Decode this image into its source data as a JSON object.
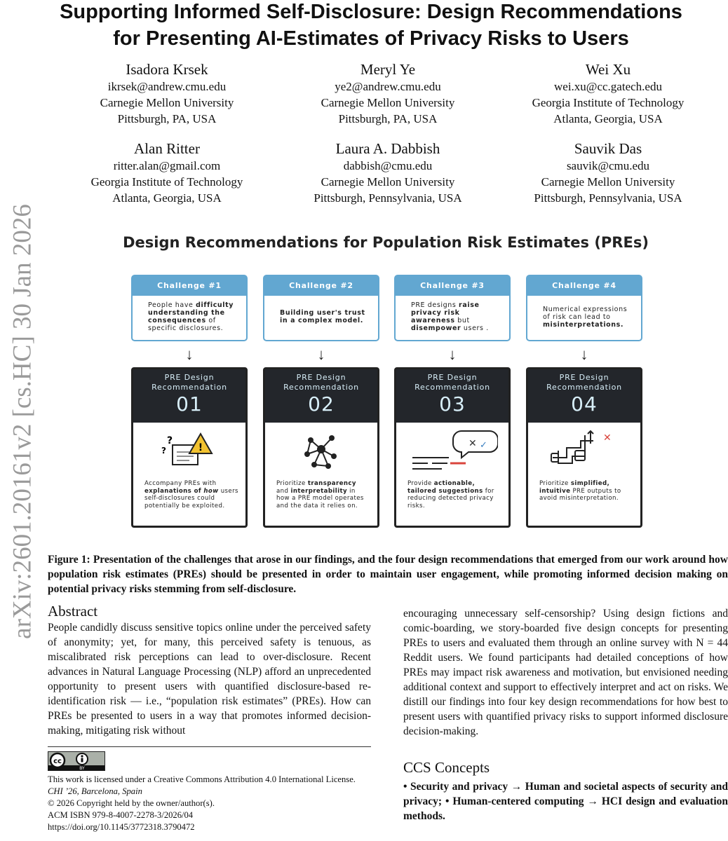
{
  "arxiv_stamp": "arXiv:2601.20161v2  [cs.HC]  30 Jan 2026",
  "title": [
    "Supporting Informed Self-Disclosure: Design Recommendations",
    "for Presenting AI-Estimates of Privacy Risks to Users"
  ],
  "authors": [
    {
      "name": "Isadora Krsek",
      "email": "ikrsek@andrew.cmu.edu",
      "org": "Carnegie Mellon University",
      "loc": "Pittsburgh, PA, USA"
    },
    {
      "name": "Meryl Ye",
      "email": "ye2@andrew.cmu.edu",
      "org": "Carnegie Mellon University",
      "loc": "Pittsburgh, PA, USA"
    },
    {
      "name": "Wei Xu",
      "email": "wei.xu@cc.gatech.edu",
      "org": "Georgia Institute of Technology",
      "loc": "Atlanta, Georgia, USA"
    },
    {
      "name": "Alan Ritter",
      "email": "ritter.alan@gmail.com",
      "org": "Georgia Institute of Technology",
      "loc": "Atlanta, Georgia, USA"
    },
    {
      "name": "Laura A. Dabbish",
      "email": "dabbish@cmu.edu",
      "org": "Carnegie Mellon University",
      "loc": "Pittsburgh, Pennsylvania, USA"
    },
    {
      "name": "Sauvik Das",
      "email": "sauvik@cmu.edu",
      "org": "Carnegie Mellon University",
      "loc": "Pittsburgh, Pennsylvania, USA"
    }
  ],
  "figure": {
    "title": "Design Recommendations for Population Risk Estimates (PREs)",
    "accent": "#62a7d1",
    "dark": "#23262b",
    "challenges": [
      {
        "label": "Challenge #1",
        "text": [
          [
            "People have ",
            0
          ],
          [
            "difficulty understanding the consequences",
            1
          ],
          [
            " of specific disclosures.",
            0
          ]
        ]
      },
      {
        "label": "Challenge #2",
        "text": [
          [
            "Building user's trust in a complex model.",
            1
          ]
        ]
      },
      {
        "label": "Challenge #3",
        "text": [
          [
            "PRE designs ",
            0
          ],
          [
            "raise privacy risk awareness",
            1
          ],
          [
            " but ",
            0
          ],
          [
            "disempower",
            1
          ],
          [
            " users .",
            0
          ]
        ]
      },
      {
        "label": "Challenge #4",
        "text": [
          [
            "Numerical expressions of risk can lead to ",
            0
          ],
          [
            "misinterpretations.",
            1
          ]
        ]
      }
    ],
    "arrow": "↓",
    "recommendations": [
      {
        "label": "PRE Design Recommendation",
        "number": "01",
        "icon": "warning-document-icon",
        "text": [
          [
            "Accompany PREs with ",
            0
          ],
          [
            "explanations of ",
            1
          ],
          [
            "how",
            1
          ],
          [
            " users self-disclosures could potentially be exploited.",
            0
          ]
        ]
      },
      {
        "label": "PRE Design Recommendation",
        "number": "02",
        "icon": "network-model-icon",
        "text": [
          [
            "Prioritize ",
            0
          ],
          [
            "transparency",
            1
          ],
          [
            " and ",
            0
          ],
          [
            "interpretability",
            1
          ],
          [
            " in how a PRE model operates and the data it relies on.",
            0
          ]
        ]
      },
      {
        "label": "PRE Design Recommendation",
        "number": "03",
        "icon": "suggestion-bubble-icon",
        "text": [
          [
            "Provide ",
            0
          ],
          [
            "actionable, tailored suggestions",
            1
          ],
          [
            " for reducing detected privacy risks.",
            0
          ]
        ]
      },
      {
        "label": "PRE Design Recommendation",
        "number": "04",
        "icon": "simplified-path-icon",
        "text": [
          [
            "Prioritize ",
            0
          ],
          [
            "simplified, intuitive",
            1
          ],
          [
            " PRE outputs to avoid misinterpretation.",
            0
          ]
        ]
      }
    ]
  },
  "caption": "Figure 1: Presentation of the challenges that arose in our findings, and the four design recommendations that emerged from our work around how population risk estimates (PREs) should be presented in order to maintain user engagement, while promoting informed decision making on potential privacy risks stemming from self-disclosure.",
  "abstract": {
    "heading": "Abstract",
    "left": "People candidly discuss sensitive topics online under the perceived safety of anonymity; yet, for many, this perceived safety is tenuous, as miscalibrated risk perceptions can lead to over-disclosure. Recent advances in Natural Language Processing (NLP) afford an unprecedented opportunity to present users with quantified disclosure-based re-identification risk — i.e., “population risk estimates” (PREs). How can PREs be presented to users in a way that promotes informed decision-making, mitigating risk without",
    "right": "encouraging unnecessary self-censorship? Using design fictions and comic-boarding, we story-boarded five design concepts for presenting PREs to users and evaluated them through an online survey with N = 44 Reddit users. We found participants had detailed conceptions of how PREs may impact risk awareness and motivation, but envisioned needing additional context and support to effectively interpret and act on risks. We distill our findings into four key design recommendations for how best to present users with quantified privacy risks to support informed disclosure decision-making."
  },
  "license": {
    "badge": "CC BY",
    "lines": [
      "This work is licensed under a Creative Commons Attribution 4.0 International License.",
      "CHI ’26, Barcelona, Spain",
      "© 2026 Copyright held by the owner/author(s).",
      "ACM ISBN 979-8-4007-2278-3/2026/04",
      "https://doi.org/10.1145/3772318.3790472"
    ]
  },
  "ccs": {
    "heading": "CCS Concepts",
    "text": "• Security and privacy → Human and societal aspects of security and privacy; • Human-centered computing → HCI design and evaluation methods."
  }
}
